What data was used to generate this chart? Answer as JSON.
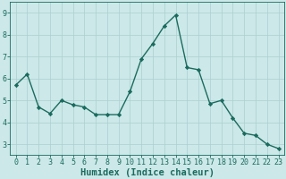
{
  "x": [
    0,
    1,
    2,
    3,
    4,
    5,
    6,
    7,
    8,
    9,
    10,
    11,
    12,
    13,
    14,
    15,
    16,
    17,
    18,
    19,
    20,
    21,
    22,
    23
  ],
  "y": [
    5.7,
    6.2,
    4.7,
    4.4,
    5.0,
    4.8,
    4.7,
    4.35,
    4.35,
    4.35,
    5.4,
    6.9,
    7.6,
    8.4,
    8.9,
    6.5,
    6.4,
    4.85,
    5.0,
    4.2,
    3.5,
    3.4,
    3.0,
    2.8
  ],
  "line_color": "#1a6b5e",
  "marker": "D",
  "markersize": 2.2,
  "linewidth": 1.0,
  "xlabel": "Humidex (Indice chaleur)",
  "xlim": [
    -0.5,
    23.5
  ],
  "ylim": [
    2.5,
    9.5
  ],
  "yticks": [
    3,
    4,
    5,
    6,
    7,
    8,
    9
  ],
  "xticks": [
    0,
    1,
    2,
    3,
    4,
    5,
    6,
    7,
    8,
    9,
    10,
    11,
    12,
    13,
    14,
    15,
    16,
    17,
    18,
    19,
    20,
    21,
    22,
    23
  ],
  "bg_color": "#cce8e8",
  "grid_color": "#aacfcf",
  "tick_fontsize": 6,
  "xlabel_fontsize": 7.5
}
